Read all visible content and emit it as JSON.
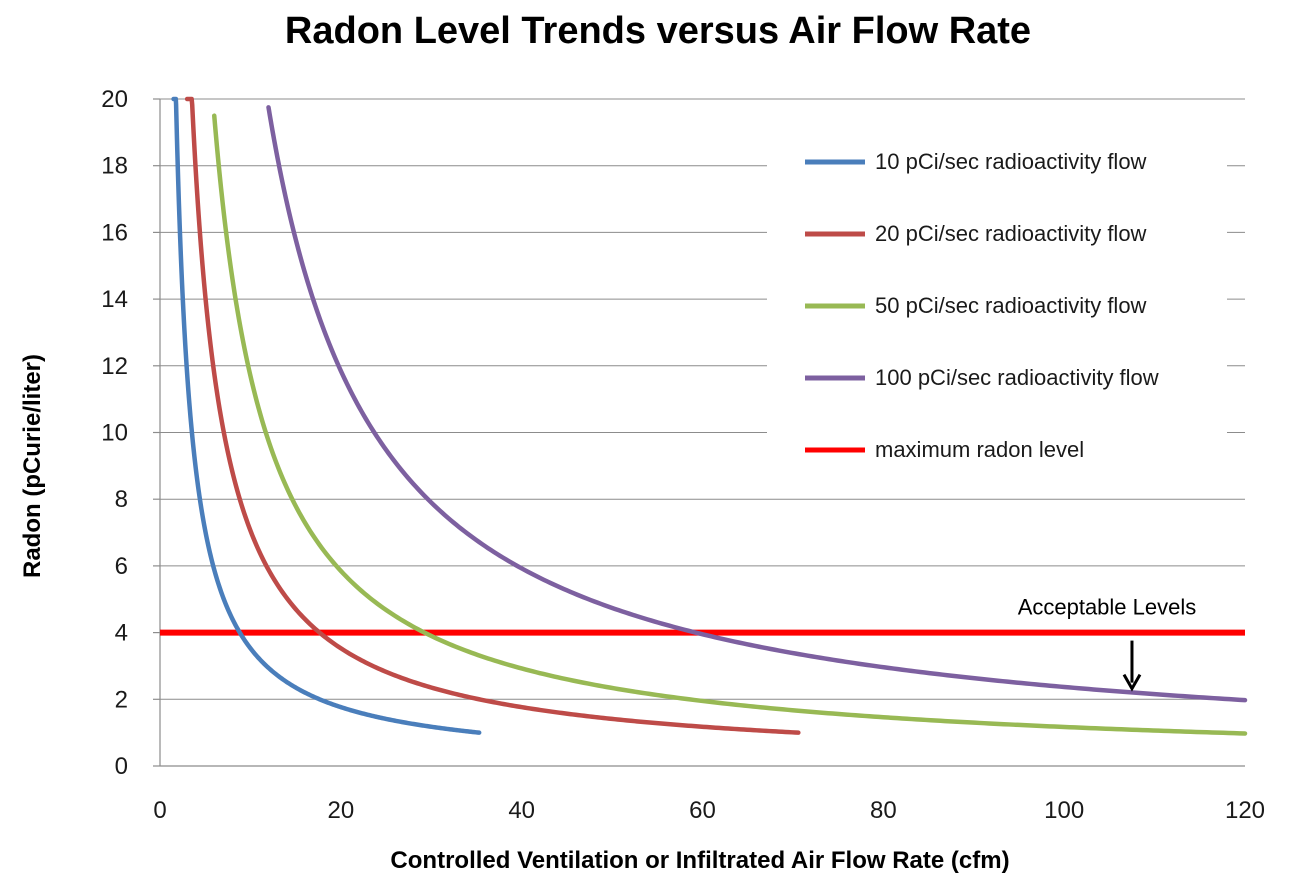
{
  "chart_data": {
    "type": "line",
    "title": "Radon Level Trends versus Air Flow Rate",
    "xlabel": "Controlled Ventilation or Infiltrated Air Flow Rate (cfm)",
    "ylabel": "Radon (pCurie/liter)",
    "xlim": [
      0,
      120
    ],
    "ylim": [
      0,
      20
    ],
    "x_ticks": [
      0,
      20,
      40,
      60,
      80,
      100,
      120
    ],
    "y_ticks": [
      0,
      2,
      4,
      6,
      8,
      10,
      12,
      14,
      16,
      18,
      20
    ],
    "grid": "horizontal",
    "legend_position": "right",
    "series": [
      {
        "name": "10 pCi/sec radioactivity flow",
        "color": "#4a7ebb",
        "x_start": 1.5,
        "x_end": 35.3,
        "k": 35.3
      },
      {
        "name": "20 pCi/sec radioactivity flow",
        "color": "#be4b48",
        "x_start": 3.0,
        "x_end": 70.6,
        "k": 70.6
      },
      {
        "name": "50 pCi/sec radioactivity flow",
        "color": "#98b954",
        "x_start": 6.0,
        "x_end": 120,
        "k": 117
      },
      {
        "name": "100 pCi/sec radioactivity flow",
        "color": "#7d60a0",
        "x_start": 12.0,
        "x_end": 120,
        "k": 237
      }
    ],
    "reference_line": {
      "name": "maximum radon level",
      "y": 4,
      "color": "#ff0000"
    },
    "annotations": [
      {
        "text": "Acceptable  Levels",
        "x": 107.5,
        "y": 4
      }
    ]
  }
}
